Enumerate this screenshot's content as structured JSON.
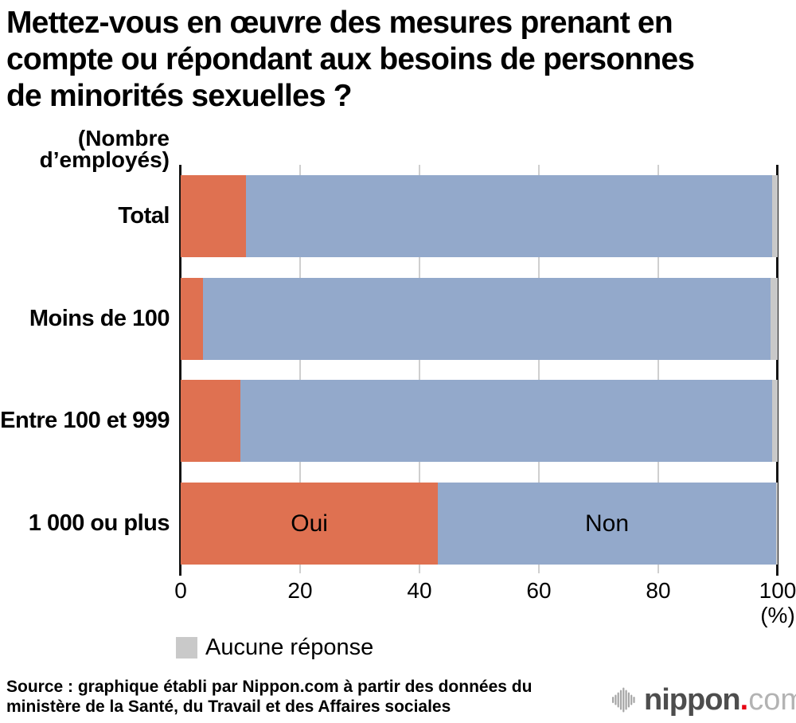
{
  "title_lines": [
    "Mettez-vous en œuvre des mesures prenant en",
    "compte ou répondant aux besoins de personnes",
    "de minorités sexuelles ?"
  ],
  "y_axis_note_lines": [
    "(Nombre",
    "d’employés)"
  ],
  "chart_data": {
    "type": "bar",
    "orientation": "horizontal",
    "stacked": true,
    "title": "Mettez-vous en œuvre des mesures prenant en compte ou répondant aux besoins de personnes de minorités sexuelles ?",
    "categories": [
      "Total",
      "Moins de 100",
      "Entre 100 et 999",
      "1 000 ou plus"
    ],
    "series": [
      {
        "name": "Oui",
        "color": "#df7151",
        "values": [
          10.9,
          3.7,
          10.0,
          43.1
        ]
      },
      {
        "name": "Non",
        "color": "#93a9cb",
        "values": [
          88.1,
          95.1,
          89.1,
          56.6
        ]
      },
      {
        "name": "Aucune réponse",
        "color": "#c9c9c9",
        "values": [
          1.0,
          1.2,
          0.9,
          0.3
        ]
      }
    ],
    "xlim": [
      0,
      100
    ],
    "x_ticks": [
      "0",
      "20",
      "40",
      "60",
      "80",
      "100"
    ],
    "x_tick_values": [
      0,
      20,
      40,
      60,
      80,
      100
    ],
    "x_unit_label": "(%)",
    "grid": true,
    "gridline_color": "#cfcfcf",
    "axis_color": "#151515",
    "in_bar_labels": {
      "row_index": 3,
      "oui": "Oui",
      "non": "Non"
    },
    "legend_label": "Aucune réponse",
    "legend_color": "#c9c9c9",
    "legend_position": "bottom-left"
  },
  "source_lines": [
    "Source : graphique établi par Nippon.com à partir des données du",
    "ministère de la Santé, du Travail et des Affaires sociales"
  ],
  "logo": {
    "brand": "nippon",
    "dot": ".",
    "tld": "com",
    "brand_color": "#4d4d4d",
    "dot_color": "#e60012",
    "tld_color": "#b3b3b3",
    "icon_color": "#a6a6a6"
  }
}
